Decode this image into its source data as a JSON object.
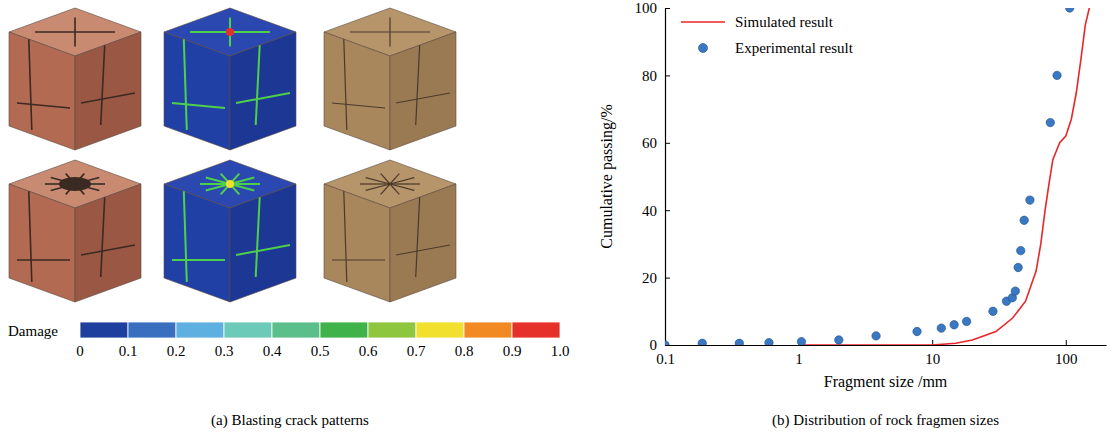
{
  "chart_data": [
    {
      "type": "image",
      "title": "(a) Blasting crack patterns",
      "color_label": "Damage",
      "color_range": [
        0,
        1
      ],
      "color_ticks": [
        0,
        0.1,
        0.2,
        0.3,
        0.4,
        0.5,
        0.6,
        0.7,
        0.8,
        0.9,
        {
          "value": 1,
          "label": "1.0"
        }
      ],
      "colors": [
        "#1f3f9e",
        "#3a6fc0",
        "#5db0e0",
        "#6ccbb8",
        "#5bbf8c",
        "#3fb34a",
        "#8fc63f",
        "#f2e02e",
        "#f28a23",
        "#e6302a"
      ]
    },
    {
      "type": "line",
      "title": "(b) Distribution of rock fragmen sizes",
      "x_label": "Fragment size /mm",
      "y_label": "Cumulative passing/%",
      "log": "x",
      "xlim": [
        0.1,
        200
      ],
      "xticks": [
        0.1,
        1,
        10,
        100
      ],
      "ylim": [
        0,
        100
      ],
      "yticks": [
        0,
        20,
        40,
        60,
        80,
        100
      ],
      "grid": false,
      "legend": "upper left",
      "series": [
        {
          "name": "Simulated result",
          "type": "line",
          "color": "#e8262a",
          "line_style": "solid",
          "x": [
            1,
            10,
            15,
            20,
            30,
            40,
            50,
            60,
            65,
            70,
            75,
            80,
            90,
            100,
            110,
            120,
            130,
            140,
            150
          ],
          "values": [
            0,
            0,
            0.5,
            1.5,
            4,
            8,
            13,
            22,
            30,
            40,
            48,
            55,
            60,
            62,
            67,
            75,
            85,
            95,
            100
          ]
        },
        {
          "name": "Experimental result",
          "type": "scatter",
          "color": "#3a78c2",
          "marker": "circle",
          "x": [
            0.1,
            0.19,
            0.36,
            0.6,
            1.05,
            2,
            3.8,
            7.7,
            11.7,
            14.6,
            18.1,
            28.5,
            36,
            39.8,
            41.9,
            44,
            46,
            48.8,
            53.9,
            76.6,
            86,
            107
          ],
          "values": [
            0,
            0.5,
            0.5,
            0.7,
            1,
            1.5,
            2.7,
            4,
            5,
            6,
            7,
            10,
            13,
            14,
            16,
            23,
            28,
            37,
            43,
            66,
            80,
            100
          ]
        }
      ]
    }
  ]
}
